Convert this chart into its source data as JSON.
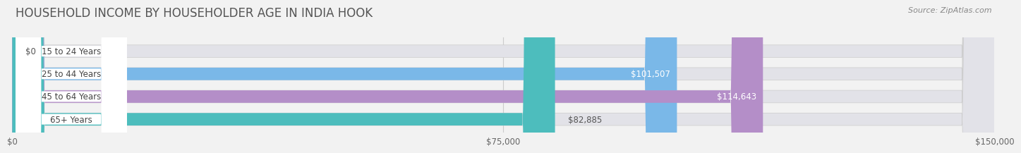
{
  "title": "HOUSEHOLD INCOME BY HOUSEHOLDER AGE IN INDIA HOOK",
  "source": "Source: ZipAtlas.com",
  "categories": [
    "15 to 24 Years",
    "25 to 44 Years",
    "45 to 64 Years",
    "65+ Years"
  ],
  "values": [
    0,
    101507,
    114643,
    82885
  ],
  "bar_colors": [
    "#f2a0a8",
    "#7ab8e8",
    "#b48ec8",
    "#4dbdbd"
  ],
  "bar_labels": [
    "$0",
    "$101,507",
    "$114,643",
    "$82,885"
  ],
  "label_in_bar": [
    false,
    true,
    true,
    false
  ],
  "xlim": [
    0,
    150000
  ],
  "xticks": [
    0,
    75000,
    150000
  ],
  "xtick_labels": [
    "$0",
    "$75,000",
    "$150,000"
  ],
  "background_color": "#f2f2f2",
  "bar_bg_color": "#e2e2e8",
  "title_fontsize": 12,
  "source_fontsize": 8,
  "label_fontsize": 8.5,
  "tick_fontsize": 8.5,
  "bar_height": 0.55,
  "bar_gap": 0.18
}
